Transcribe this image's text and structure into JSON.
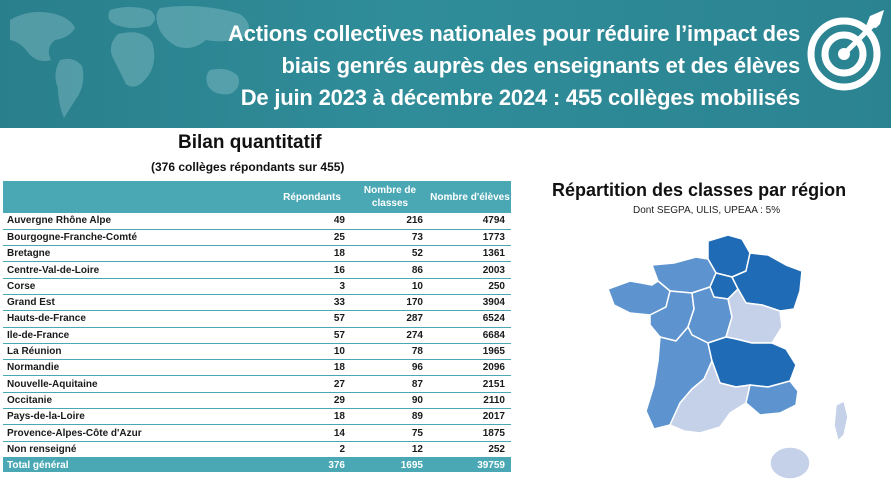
{
  "header": {
    "title_lines": [
      "Actions collectives nationales pour réduire l’impact des",
      "biais genrés auprès des enseignants et des élèves",
      "De juin 2023 à  décembre 2024 : 455 collèges mobilisés"
    ],
    "icon": "target-icon",
    "background_color": "#2b8391"
  },
  "bilan": {
    "title": "Bilan quantitatif",
    "subtitle": "(376  collèges répondants sur 455)",
    "columns": [
      "",
      "Répondants",
      "Nombre de classes",
      "Nombre d'élèves"
    ],
    "rows": [
      [
        "Auvergne Rhône Alpe",
        "49",
        "216",
        "4794"
      ],
      [
        "Bourgogne-Franche-Comté",
        "25",
        "73",
        "1773"
      ],
      [
        "Bretagne",
        "18",
        "52",
        "1361"
      ],
      [
        "Centre-Val-de-Loire",
        "16",
        "86",
        "2003"
      ],
      [
        "Corse",
        "3",
        "10",
        "250"
      ],
      [
        "Grand Est",
        "33",
        "170",
        "3904"
      ],
      [
        "Hauts-de-France",
        "57",
        "287",
        "6524"
      ],
      [
        "Ile-de-France",
        "57",
        "274",
        "6684"
      ],
      [
        "La Réunion",
        "10",
        "78",
        "1965"
      ],
      [
        "Normandie",
        "18",
        "96",
        "2096"
      ],
      [
        "Nouvelle-Aquitaine",
        "27",
        "87",
        "2151"
      ],
      [
        "Occitanie",
        "29",
        "90",
        "2110"
      ],
      [
        "Pays-de-la-Loire",
        "18",
        "89",
        "2017"
      ],
      [
        "Provence-Alpes-Côte d'Azur",
        "14",
        "75",
        "1875"
      ],
      [
        "Non renseigné",
        "2",
        "12",
        "252"
      ]
    ],
    "total": [
      "Total général",
      "376",
      "1695",
      "39759"
    ],
    "accent_color": "#4aa8b5"
  },
  "map": {
    "title": "Répartition des classes par région",
    "subtitle": "Dont SEGPA, ULIS, UPEAA : 5%",
    "shade_colors": {
      "dark": "#1f6bb5",
      "medium": "#5d94cf",
      "light": "#c5d1e8"
    }
  }
}
